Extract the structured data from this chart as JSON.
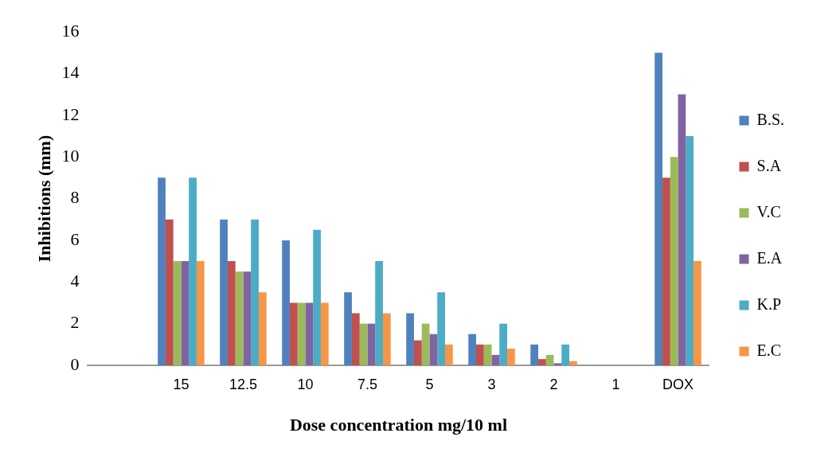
{
  "chart_data": {
    "type": "bar",
    "xlabel": "Dose concentration mg/10 ml",
    "ylabel": "Inhibitions (mm)",
    "categories": [
      null,
      "15",
      "12.5",
      "10",
      "7.5",
      "5",
      "3",
      "2",
      "1",
      "DOX"
    ],
    "series": [
      {
        "name": "B.S.",
        "color": "#4f81bd",
        "values": [
          null,
          9,
          7,
          6,
          3.5,
          2.5,
          1.5,
          1,
          0,
          15
        ]
      },
      {
        "name": "S.A",
        "color": "#c0504d",
        "values": [
          null,
          7,
          5,
          3,
          2.5,
          1.2,
          1,
          0.3,
          0,
          9
        ]
      },
      {
        "name": "V.C",
        "color": "#9bbb59",
        "values": [
          null,
          5,
          4.5,
          3,
          2,
          2,
          1,
          0.5,
          0,
          10
        ]
      },
      {
        "name": "E.A",
        "color": "#8064a2",
        "values": [
          null,
          5,
          4.5,
          3,
          2,
          1.5,
          0.5,
          0.1,
          0,
          13
        ]
      },
      {
        "name": "K.P",
        "color": "#4bacc6",
        "values": [
          null,
          9,
          7,
          6.5,
          5,
          3.5,
          2,
          1,
          0,
          11
        ]
      },
      {
        "name": "E.C",
        "color": "#f79646",
        "values": [
          null,
          5,
          3.5,
          3,
          2.5,
          1,
          0.8,
          0.2,
          0,
          5
        ]
      }
    ],
    "ylim": [
      0,
      16
    ],
    "yticks": [
      0,
      2,
      4,
      6,
      8,
      10,
      12,
      14,
      16
    ],
    "grid": false,
    "legend": "right"
  }
}
